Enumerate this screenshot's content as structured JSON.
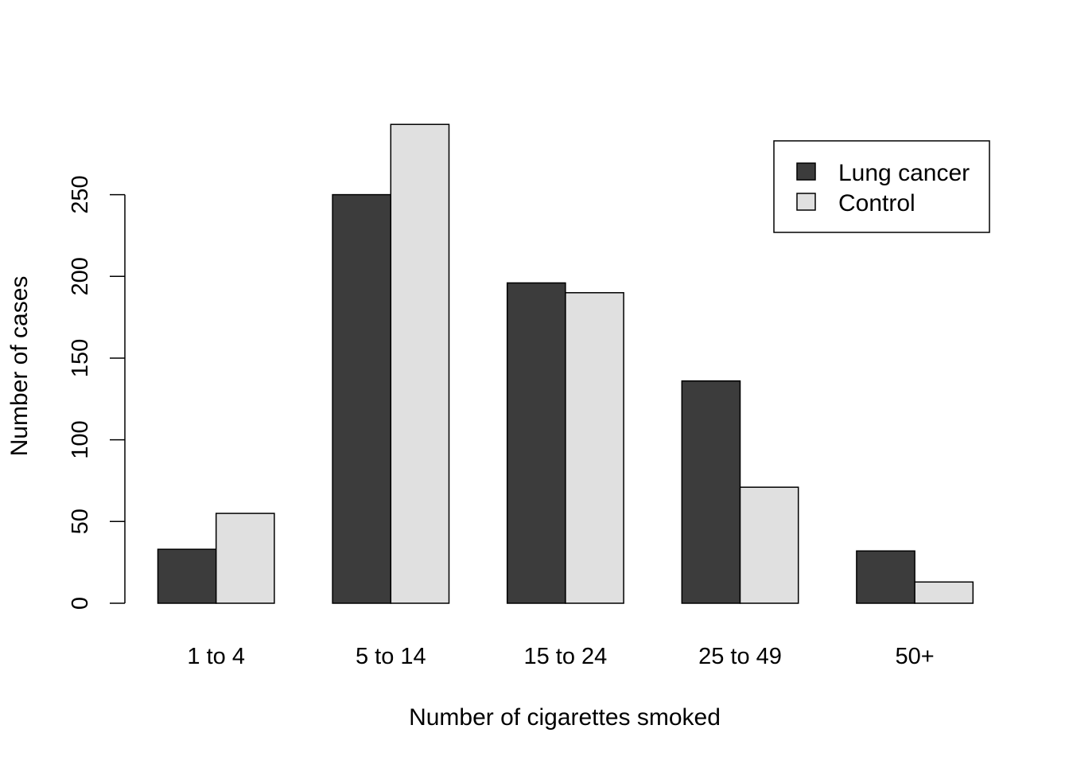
{
  "chart_data": {
    "type": "bar",
    "title": "",
    "xlabel": "Number of cigarettes smoked",
    "ylabel": "Number of cases",
    "categories": [
      "1 to 4",
      "5 to 14",
      "15 to 24",
      "25 to 49",
      "50+"
    ],
    "series": [
      {
        "name": "Lung cancer",
        "values": [
          33,
          250,
          196,
          136,
          32
        ],
        "color": "#3c3c3c"
      },
      {
        "name": "Control",
        "values": [
          55,
          293,
          190,
          71,
          13
        ],
        "color": "#e0e0e0"
      }
    ],
    "yticks": [
      0,
      50,
      100,
      150,
      200,
      250
    ],
    "ylim": [
      0,
      293
    ],
    "grid": false,
    "legend_position": "top-right",
    "legend_boxed": true
  }
}
